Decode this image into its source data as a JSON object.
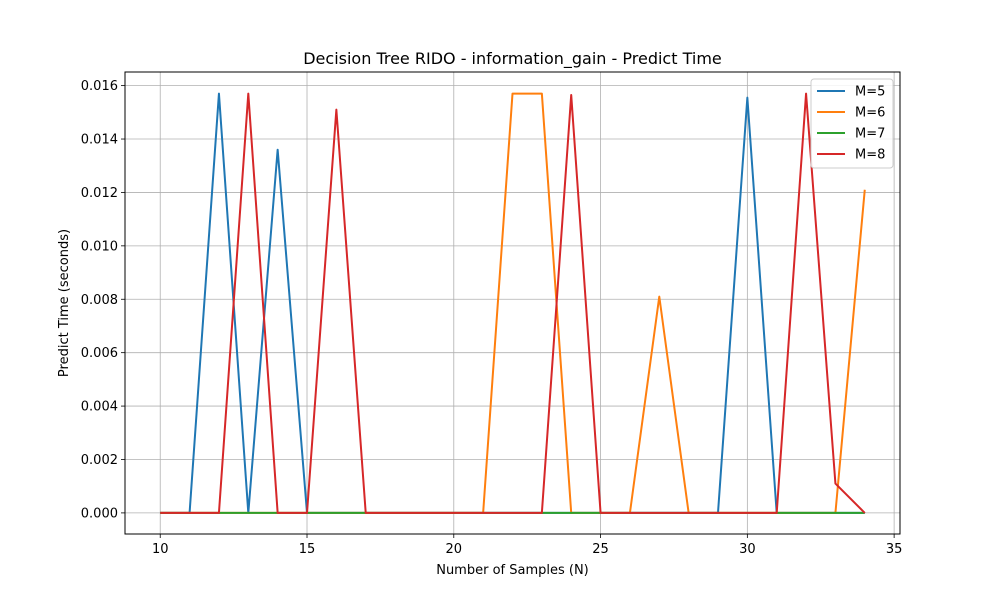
{
  "chart_data": {
    "type": "line",
    "title": "Decision Tree RIDO - information_gain - Predict Time",
    "xlabel": "Number of Samples (N)",
    "ylabel": "Predict Time (seconds)",
    "xlim": [
      8.8,
      35.2
    ],
    "ylim": [
      -0.00079,
      0.01651
    ],
    "x_ticks": [
      10,
      15,
      20,
      25,
      30,
      35
    ],
    "x_tick_labels": [
      "10",
      "15",
      "20",
      "25",
      "30",
      "35"
    ],
    "y_ticks": [
      0.0,
      0.002,
      0.004,
      0.006,
      0.008,
      0.01,
      0.012,
      0.014,
      0.016
    ],
    "y_tick_labels": [
      "0.000",
      "0.002",
      "0.004",
      "0.006",
      "0.008",
      "0.010",
      "0.012",
      "0.014",
      "0.016"
    ],
    "grid": true,
    "legend": "top-right",
    "x": [
      10,
      11,
      12,
      13,
      14,
      15,
      16,
      17,
      18,
      19,
      20,
      21,
      22,
      23,
      24,
      25,
      26,
      27,
      28,
      29,
      30,
      31,
      32,
      33,
      34
    ],
    "series": [
      {
        "name": "M=5",
        "color": "#1f77b4",
        "values": [
          0,
          0,
          0.0157,
          0,
          0.0136,
          0,
          0,
          0,
          0,
          0,
          0,
          0,
          0,
          0,
          0,
          0,
          0,
          0,
          0,
          0,
          0.01555,
          0,
          0,
          0,
          0
        ]
      },
      {
        "name": "M=6",
        "color": "#ff7f0e",
        "values": [
          0,
          0,
          0,
          0,
          0,
          0,
          0,
          0,
          0,
          0,
          0,
          0,
          0.0157,
          0.0157,
          0,
          0,
          0,
          0.0081,
          0,
          0,
          0,
          0,
          0,
          0,
          0.0121
        ]
      },
      {
        "name": "M=7",
        "color": "#2ca02c",
        "values": [
          0,
          0,
          0,
          0,
          0,
          0,
          0,
          0,
          0,
          0,
          0,
          0,
          0,
          0,
          0,
          0,
          0,
          0,
          0,
          0,
          0,
          0,
          0,
          0,
          0
        ]
      },
      {
        "name": "M=8",
        "color": "#d62728",
        "values": [
          0,
          0,
          0,
          0.0157,
          0,
          0,
          0.0151,
          0,
          0,
          0,
          0,
          0,
          0,
          0,
          0.01565,
          0,
          0,
          0,
          0,
          0,
          0,
          0,
          0.0157,
          0.0011,
          0
        ]
      }
    ]
  }
}
